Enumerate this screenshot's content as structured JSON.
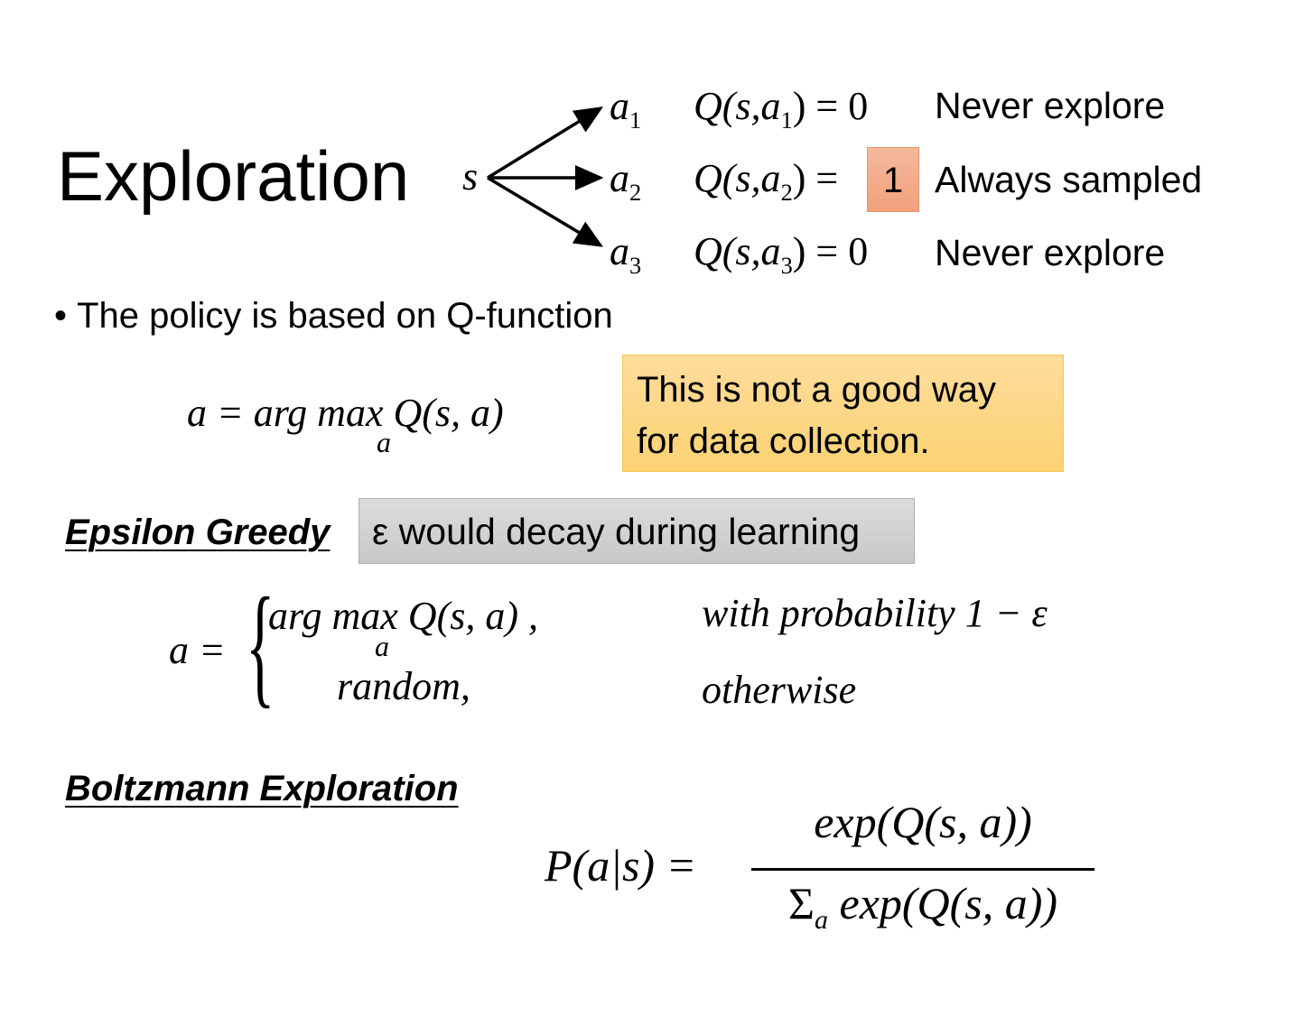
{
  "title": "Exploration",
  "diagram": {
    "state": "s",
    "actions": [
      {
        "action": "a",
        "index": "1",
        "q_lhs": "Q(s,a",
        "q_rhs": ") = 0",
        "note": "Never explore"
      },
      {
        "action": "a",
        "index": "2",
        "q_lhs": "Q(s,a",
        "q_rhs": ") =",
        "value": "1",
        "note": "Always sampled",
        "highlight_color": "#f4ac8a"
      },
      {
        "action": "a",
        "index": "3",
        "q_lhs": "Q(s,a",
        "q_rhs": ") = 0",
        "note": "Never explore"
      }
    ]
  },
  "bullet": "The policy is based on Q-function",
  "argmax_formula": {
    "main": "a = arg max Q(s, a)",
    "sub": "a"
  },
  "callout_yellow": {
    "line1": "This is not a good way",
    "line2": "for data collection.",
    "color": "#fdd680"
  },
  "epsilon_greedy": {
    "heading": "Epsilon Greedy",
    "callout_gray": "ε would decay during learning",
    "lhs": "a =",
    "case1": "arg max Q(s, a) ,",
    "case1_sub": "a",
    "case2": "random,",
    "cond1": "with probability 1 − ε",
    "cond2": "otherwise"
  },
  "boltzmann": {
    "heading": "Boltzmann Exploration",
    "lhs": "P(a|s) =",
    "numerator": "exp(Q(s, a))",
    "denominator_sum": "Σ",
    "denominator_sub": "a",
    "denominator": "exp(Q(s, a))"
  }
}
